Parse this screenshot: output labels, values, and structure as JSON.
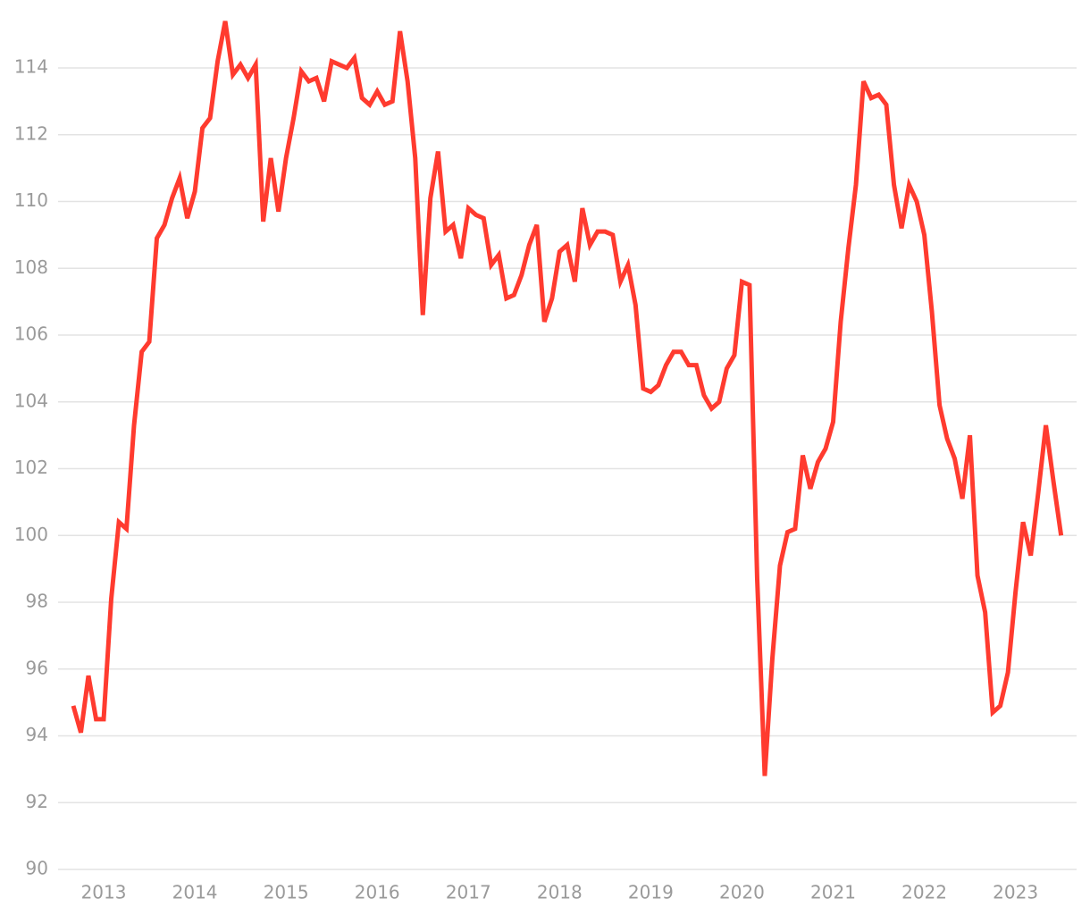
{
  "chart_data": {
    "type": "line",
    "x": [
      2012.667,
      2012.75,
      2012.833,
      2012.917,
      2013,
      2013.083,
      2013.167,
      2013.25,
      2013.333,
      2013.417,
      2013.5,
      2013.583,
      2013.667,
      2013.75,
      2013.833,
      2013.917,
      2014,
      2014.083,
      2014.167,
      2014.25,
      2014.333,
      2014.417,
      2014.5,
      2014.583,
      2014.667,
      2014.75,
      2014.833,
      2014.917,
      2015,
      2015.083,
      2015.167,
      2015.25,
      2015.333,
      2015.417,
      2015.5,
      2015.583,
      2015.667,
      2015.75,
      2015.833,
      2015.917,
      2016,
      2016.083,
      2016.167,
      2016.25,
      2016.333,
      2016.417,
      2016.5,
      2016.583,
      2016.667,
      2016.75,
      2016.833,
      2016.917,
      2017,
      2017.083,
      2017.167,
      2017.25,
      2017.333,
      2017.417,
      2017.5,
      2017.583,
      2017.667,
      2017.75,
      2017.833,
      2017.917,
      2018,
      2018.083,
      2018.167,
      2018.25,
      2018.333,
      2018.417,
      2018.5,
      2018.583,
      2018.667,
      2018.75,
      2018.833,
      2018.917,
      2019,
      2019.083,
      2019.167,
      2019.25,
      2019.333,
      2019.417,
      2019.5,
      2019.583,
      2019.667,
      2019.75,
      2019.833,
      2019.917,
      2020,
      2020.083,
      2020.167,
      2020.25,
      2020.333,
      2020.417,
      2020.5,
      2020.583,
      2020.667,
      2020.75,
      2020.833,
      2020.917,
      2021,
      2021.083,
      2021.167,
      2021.25,
      2021.333,
      2021.417,
      2021.5,
      2021.583,
      2021.667,
      2021.75,
      2021.833,
      2021.917,
      2022,
      2022.083,
      2022.167,
      2022.25,
      2022.333,
      2022.417,
      2022.5,
      2022.583,
      2022.667,
      2022.75,
      2022.833,
      2022.917,
      2023,
      2023.083,
      2023.167,
      2023.25,
      2023.333,
      2023.417,
      2023.5
    ],
    "series": [
      {
        "color": "#ff3b2f",
        "values": [
          94.9,
          94.1,
          95.8,
          94.5,
          94.5,
          98.1,
          100.4,
          100.2,
          103.3,
          105.5,
          105.8,
          108.9,
          109.3,
          110.1,
          110.7,
          109.5,
          110.3,
          112.2,
          112.5,
          114.2,
          115.4,
          113.8,
          114.1,
          113.7,
          114.1,
          109.4,
          111.3,
          109.7,
          111.3,
          112.5,
          113.9,
          113.6,
          113.7,
          113.0,
          114.2,
          114.1,
          114.0,
          114.3,
          113.1,
          112.9,
          113.3,
          112.9,
          113.0,
          115.1,
          113.6,
          111.3,
          106.6,
          110.1,
          111.5,
          109.1,
          109.3,
          108.3,
          109.8,
          109.6,
          109.5,
          108.1,
          108.4,
          107.1,
          107.2,
          107.8,
          108.7,
          109.3,
          106.4,
          107.1,
          108.5,
          108.7,
          107.6,
          109.8,
          108.7,
          109.1,
          109.1,
          109.0,
          107.6,
          108.1,
          106.9,
          104.4,
          104.3,
          104.5,
          105.1,
          105.5,
          105.5,
          105.1,
          105.1,
          104.2,
          103.8,
          104.0,
          105.0,
          105.4,
          107.6,
          107.5,
          98.7,
          92.8,
          96.3,
          99.1,
          100.1,
          100.2,
          102.4,
          101.4,
          102.2,
          102.6,
          103.4,
          106.4,
          108.6,
          110.5,
          113.6,
          113.1,
          113.2,
          112.9,
          110.5,
          109.2,
          110.5,
          110.0,
          109.0,
          106.7,
          103.9,
          102.9,
          102.3,
          101.1,
          103.0,
          98.8,
          97.7,
          94.7,
          94.9,
          95.9,
          98.3,
          100.4,
          99.4,
          101.3,
          103.3,
          101.6,
          100.0
        ]
      }
    ],
    "xlim": [
      2012.5,
      2023.67
    ],
    "xticks": [
      2013,
      2014,
      2015,
      2016,
      2017,
      2018,
      2019,
      2020,
      2021,
      2022,
      2023
    ],
    "ylim": [
      90,
      115.5
    ],
    "yticks": [
      90,
      92,
      94,
      96,
      98,
      100,
      102,
      104,
      106,
      108,
      110,
      112,
      114
    ],
    "grid": true
  }
}
